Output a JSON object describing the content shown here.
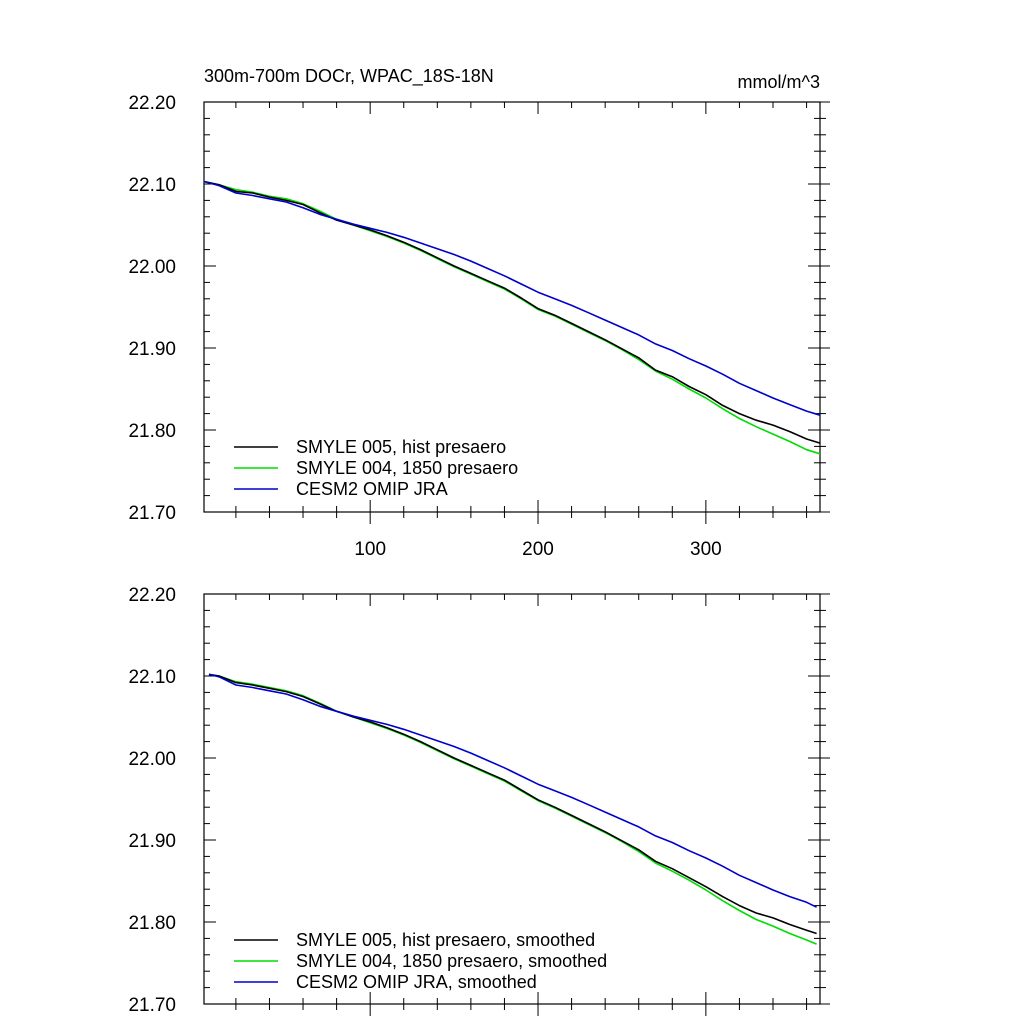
{
  "figure": {
    "title": "300m-700m DOCr, WPAC_18S-18N",
    "units": "mmol/m^3"
  },
  "chart_data": [
    {
      "type": "line",
      "title": "300m-700m DOCr, WPAC_18S-18N",
      "units": "mmol/m^3",
      "xlabel": "",
      "ylabel": "",
      "xlim": [
        1,
        368
      ],
      "ylim": [
        21.7,
        22.2
      ],
      "x_ticks": [
        100,
        200,
        300
      ],
      "x_tick_labels": [
        "100",
        "200",
        "300"
      ],
      "y_ticks": [
        21.7,
        21.8,
        21.9,
        22.0,
        22.1,
        22.2
      ],
      "y_tick_labels": [
        "21.70",
        "21.80",
        "21.90",
        "22.00",
        "22.10",
        "22.20"
      ],
      "grid": false,
      "legend_position": "bottom-left",
      "x": [
        1,
        10,
        20,
        30,
        40,
        50,
        60,
        70,
        80,
        90,
        100,
        110,
        120,
        130,
        140,
        150,
        160,
        170,
        180,
        190,
        200,
        210,
        220,
        230,
        240,
        250,
        260,
        270,
        280,
        290,
        300,
        310,
        320,
        330,
        340,
        350,
        360,
        368
      ],
      "series": [
        {
          "name": "SMYLE 005, hist presaero",
          "color": "#000000",
          "values": [
            22.103,
            22.099,
            22.091,
            22.089,
            22.084,
            22.08,
            22.075,
            22.065,
            22.056,
            22.05,
            22.044,
            22.037,
            22.029,
            22.02,
            22.01,
            22.0,
            21.991,
            21.982,
            21.973,
            21.961,
            21.948,
            21.94,
            21.93,
            21.92,
            21.91,
            21.899,
            21.888,
            21.873,
            21.865,
            21.853,
            21.843,
            21.83,
            21.82,
            21.812,
            21.806,
            21.798,
            21.789,
            21.784
          ]
        },
        {
          "name": "SMYLE 004, 1850 presaero",
          "color": "#00dd00",
          "values": [
            22.103,
            22.099,
            22.093,
            22.09,
            22.085,
            22.082,
            22.076,
            22.067,
            22.057,
            22.05,
            22.043,
            22.036,
            22.028,
            22.019,
            22.009,
            21.999,
            21.99,
            21.981,
            21.972,
            21.96,
            21.947,
            21.939,
            21.929,
            21.919,
            21.909,
            21.898,
            21.886,
            21.872,
            21.862,
            21.85,
            21.839,
            21.826,
            21.814,
            21.804,
            21.795,
            21.786,
            21.776,
            21.771
          ]
        },
        {
          "name": "CESM2 OMIP JRA",
          "color": "#0000cc",
          "values": [
            22.103,
            22.098,
            22.089,
            22.086,
            22.082,
            22.078,
            22.071,
            22.063,
            22.057,
            22.051,
            22.046,
            22.041,
            22.035,
            22.028,
            22.021,
            22.014,
            22.006,
            21.997,
            21.988,
            21.978,
            21.968,
            21.96,
            21.952,
            21.943,
            21.934,
            21.925,
            21.916,
            21.905,
            21.897,
            21.887,
            21.878,
            21.868,
            21.857,
            21.848,
            21.839,
            21.831,
            21.823,
            21.818
          ]
        }
      ]
    },
    {
      "type": "line",
      "title": "",
      "xlabel": "",
      "ylabel": "",
      "xlim": [
        1,
        368
      ],
      "ylim": [
        21.7,
        22.2
      ],
      "x_ticks": [
        100,
        200,
        300
      ],
      "x_tick_labels": [],
      "y_ticks": [
        21.7,
        21.8,
        21.9,
        22.0,
        22.1,
        22.2
      ],
      "y_tick_labels": [
        "21.70",
        "21.80",
        "21.90",
        "22.00",
        "22.10",
        "22.20"
      ],
      "grid": false,
      "legend_position": "bottom-left",
      "x": [
        4,
        10,
        20,
        30,
        40,
        50,
        60,
        70,
        80,
        90,
        100,
        110,
        120,
        130,
        140,
        150,
        160,
        170,
        180,
        190,
        200,
        210,
        220,
        230,
        240,
        250,
        260,
        270,
        280,
        290,
        300,
        310,
        320,
        330,
        340,
        350,
        360,
        366
      ],
      "series": [
        {
          "name": "SMYLE 005, hist presaero, smoothed",
          "color": "#000000",
          "values": [
            22.102,
            22.1,
            22.092,
            22.089,
            22.085,
            22.081,
            22.075,
            22.066,
            22.057,
            22.05,
            22.044,
            22.037,
            22.029,
            22.02,
            22.01,
            22.0,
            21.991,
            21.982,
            21.973,
            21.961,
            21.949,
            21.94,
            21.93,
            21.92,
            21.91,
            21.899,
            21.888,
            21.874,
            21.865,
            21.854,
            21.843,
            21.831,
            21.82,
            21.811,
            21.805,
            21.797,
            21.79,
            21.786
          ]
        },
        {
          "name": "SMYLE 004, 1850 presaero, smoothed",
          "color": "#00dd00",
          "values": [
            22.102,
            22.1,
            22.093,
            22.09,
            22.086,
            22.082,
            22.076,
            22.067,
            22.057,
            22.05,
            22.043,
            22.036,
            22.028,
            22.019,
            22.009,
            21.999,
            21.99,
            21.981,
            21.972,
            21.96,
            21.948,
            21.939,
            21.929,
            21.919,
            21.909,
            21.898,
            21.886,
            21.872,
            21.862,
            21.851,
            21.839,
            21.826,
            21.814,
            21.803,
            21.795,
            21.786,
            21.778,
            21.773
          ]
        },
        {
          "name": "CESM2 OMIP JRA, smoothed",
          "color": "#0000cc",
          "values": [
            22.102,
            22.099,
            22.089,
            22.086,
            22.082,
            22.078,
            22.071,
            22.063,
            22.057,
            22.051,
            22.046,
            22.041,
            22.035,
            22.028,
            22.021,
            22.014,
            22.006,
            21.997,
            21.988,
            21.978,
            21.968,
            21.96,
            21.952,
            21.943,
            21.934,
            21.925,
            21.916,
            21.905,
            21.897,
            21.887,
            21.878,
            21.868,
            21.857,
            21.848,
            21.839,
            21.831,
            21.824,
            21.818
          ]
        }
      ]
    }
  ]
}
